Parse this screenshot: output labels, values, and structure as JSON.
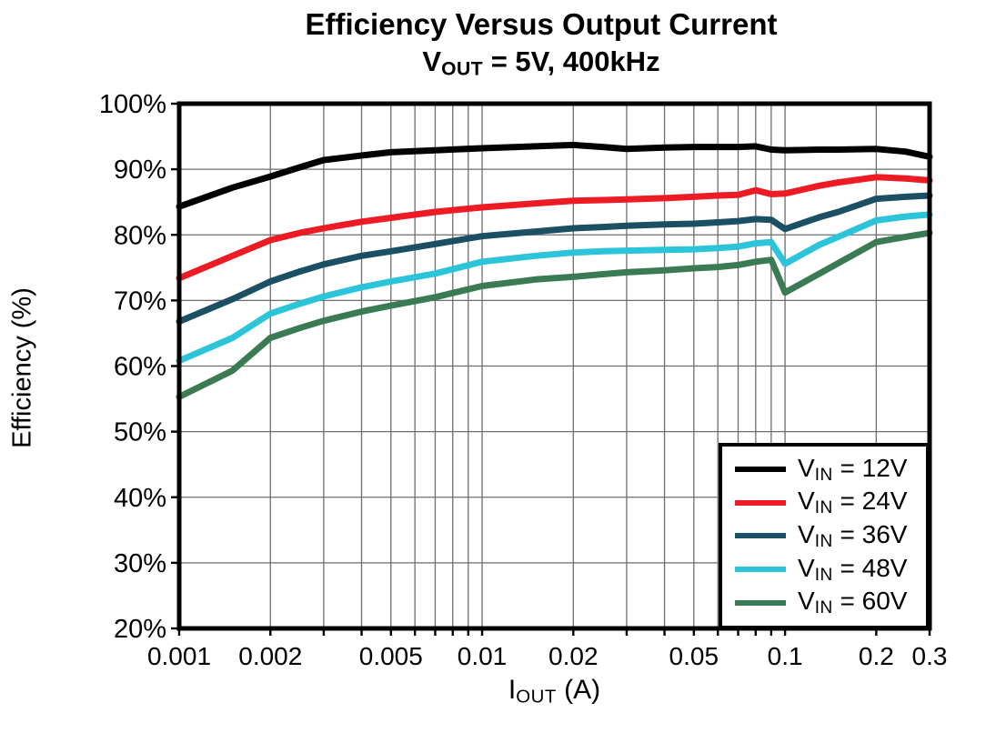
{
  "header": {
    "title": "Efficiency Versus Output Current",
    "subtitle": {
      "pre": "V",
      "sub": "OUT",
      "post": " = 5V, 400kHz"
    }
  },
  "y_axis": {
    "label": "Efficiency (%)"
  },
  "x_axis": {
    "pre": "I",
    "sub": "OUT",
    "post": " (A)"
  },
  "legend": {
    "items": [
      {
        "pre": "V",
        "sub": "IN",
        "post": " = 12V",
        "color": "#000000"
      },
      {
        "pre": "V",
        "sub": "IN",
        "post": " = 24V",
        "color": "#ED1C24"
      },
      {
        "pre": "V",
        "sub": "IN",
        "post": " = 36V",
        "color": "#1B4F63"
      },
      {
        "pre": "V",
        "sub": "IN",
        "post": " = 48V",
        "color": "#2BC4D9"
      },
      {
        "pre": "V",
        "sub": "IN",
        "post": " = 60V",
        "color": "#3A7B53"
      }
    ]
  },
  "chart_data": {
    "type": "line",
    "title": "Efficiency Versus Output Current",
    "subtitle": "VOUT = 5V, 400kHz",
    "xlabel": "IOUT (A)",
    "ylabel": "Efficiency (%)",
    "x_scale": "log",
    "xlim": [
      0.001,
      0.3
    ],
    "ylim": [
      20,
      100
    ],
    "grid": true,
    "legend_position": "lower right",
    "x_ticks": [
      0.001,
      0.002,
      0.005,
      0.01,
      0.02,
      0.05,
      0.1,
      0.2,
      0.3
    ],
    "x_tick_labels": [
      "0.001",
      "0.002",
      "0.005",
      "0.01",
      "0.02",
      "0.05",
      "0.1",
      "0.2",
      "0.3"
    ],
    "y_ticks": [
      20,
      30,
      40,
      50,
      60,
      70,
      80,
      90,
      100
    ],
    "y_tick_labels": [
      "20%",
      "30%",
      "40%",
      "50%",
      "60%",
      "70%",
      "80%",
      "90%",
      "100%"
    ],
    "x_gridlines": [
      0.001,
      0.002,
      0.003,
      0.004,
      0.005,
      0.006,
      0.007,
      0.008,
      0.009,
      0.01,
      0.02,
      0.03,
      0.04,
      0.05,
      0.06,
      0.07,
      0.08,
      0.09,
      0.1,
      0.2,
      0.3
    ],
    "y_gridlines": [
      30,
      40,
      50,
      60,
      70,
      80,
      90
    ],
    "x": [
      0.001,
      0.0015,
      0.002,
      0.0025,
      0.003,
      0.004,
      0.005,
      0.007,
      0.01,
      0.015,
      0.02,
      0.025,
      0.03,
      0.04,
      0.05,
      0.06,
      0.07,
      0.08,
      0.09,
      0.1,
      0.13,
      0.15,
      0.2,
      0.25,
      0.3
    ],
    "series": [
      {
        "name": "VIN = 12V",
        "color": "#000000",
        "values": [
          84.3,
          87.2,
          88.9,
          90.3,
          91.4,
          92.1,
          92.6,
          92.9,
          93.2,
          93.5,
          93.7,
          93.4,
          93.1,
          93.3,
          93.4,
          93.4,
          93.4,
          93.5,
          93.0,
          92.9,
          93.0,
          93.0,
          93.1,
          92.7,
          91.9
        ]
      },
      {
        "name": "VIN = 24V",
        "color": "#ED1C24",
        "values": [
          73.4,
          76.8,
          79.2,
          80.3,
          81.0,
          82.0,
          82.6,
          83.5,
          84.2,
          84.8,
          85.2,
          85.3,
          85.4,
          85.6,
          85.8,
          86.0,
          86.1,
          86.8,
          86.2,
          86.3,
          87.5,
          88.0,
          88.8,
          88.6,
          88.3
        ]
      },
      {
        "name": "VIN = 36V",
        "color": "#1B4F63",
        "values": [
          66.8,
          70.2,
          72.9,
          74.4,
          75.5,
          76.8,
          77.5,
          78.6,
          79.8,
          80.5,
          81.0,
          81.2,
          81.4,
          81.6,
          81.7,
          81.9,
          82.1,
          82.4,
          82.3,
          80.9,
          82.7,
          83.5,
          85.5,
          85.8,
          86.0
        ]
      },
      {
        "name": "VIN = 48V",
        "color": "#2BC4D9",
        "values": [
          60.8,
          64.3,
          68.0,
          69.5,
          70.6,
          72.0,
          72.9,
          74.1,
          75.9,
          76.8,
          77.3,
          77.5,
          77.6,
          77.7,
          77.8,
          78.0,
          78.2,
          78.7,
          78.9,
          75.6,
          78.5,
          79.7,
          82.2,
          82.8,
          83.1
        ]
      },
      {
        "name": "VIN = 60V",
        "color": "#3A7B53",
        "values": [
          55.3,
          59.3,
          64.3,
          65.8,
          66.9,
          68.3,
          69.2,
          70.5,
          72.2,
          73.2,
          73.6,
          74.0,
          74.3,
          74.6,
          74.9,
          75.1,
          75.4,
          75.9,
          76.2,
          71.2,
          74.1,
          75.7,
          78.9,
          79.7,
          80.3
        ]
      }
    ]
  }
}
